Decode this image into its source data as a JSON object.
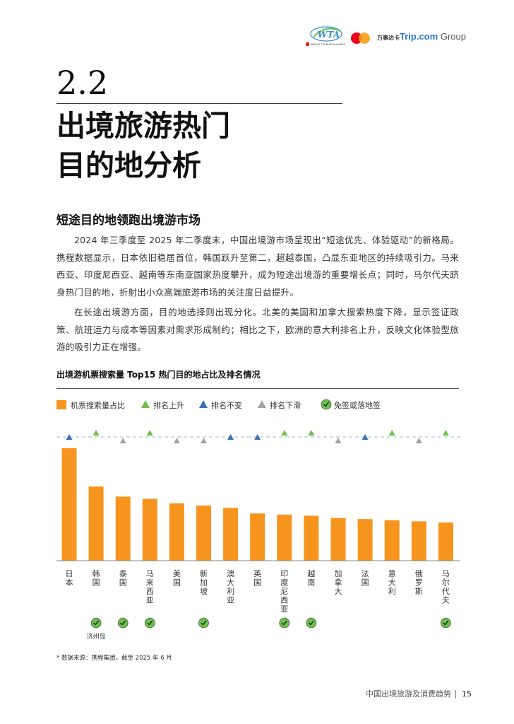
{
  "header": {
    "wta_logo_text": "WTA",
    "wta_org": "WORLD TOURISM ALLIANCE",
    "mastercard_text": "万事达卡",
    "trip_brand": "Trip.com",
    "trip_group": "Group"
  },
  "section": {
    "number": "2.2",
    "title_line1": "出境旅游热门",
    "title_line2": "目的地分析"
  },
  "subheading": "短途目的地领跑出境游市场",
  "paragraphs": [
    "2024 年三季度至 2025 年二季度末，中国出境游市场呈现出“短途优先、体验驱动”的新格局。携程数据显示，日本依旧稳居首位，韩国跃升至第二，超越泰国，凸显东亚地区的持续吸引力。马来西亚、印度尼西亚、越南等东南亚国家热度攀升，成为短途出境游的重要增长点；同时，马尔代夫跻身热门目的地，折射出小众高端旅游市场的关注度日益提升。",
    "在长途出境游方面，目的地选择则出现分化。北美的美国和加拿大搜索热度下降，显示签证政策、航班运力与成本等因素对需求形成制约；相比之下，欧洲的意大利排名上升，反映文化体验型旅游的吸引力正在增强。"
  ],
  "chart_title": "出境游机票搜索量 Top15 热门目的地占比及排名情况",
  "legend": {
    "share": "机票搜索量占比",
    "up": "排名上升",
    "same": "排名不变",
    "down": "排名下滑",
    "visa": "免签或落地签"
  },
  "colors": {
    "bar": "#f7941d",
    "up": "#6cc04a",
    "same": "#3b6fb6",
    "down": "#a3a3a3",
    "visa": "#6cc04a",
    "dashed_line": "#9fb8cf"
  },
  "chart_data": {
    "type": "bar",
    "title": "出境游机票搜索量 Top15 热门目的地占比及排名情况",
    "categories": [
      "日本",
      "韩国",
      "泰国",
      "马来西亚",
      "美国",
      "新加坡",
      "澳大利亚",
      "英国",
      "印度尼西亚",
      "越南",
      "加拿大",
      "法国",
      "意大利",
      "俄罗斯",
      "马尔代夫"
    ],
    "values": [
      100,
      66,
      57,
      55,
      51,
      49,
      47,
      42,
      41,
      40,
      38,
      37,
      36,
      35,
      34
    ],
    "rank_change": [
      "same",
      "up",
      "down",
      "up",
      "down",
      "down",
      "same",
      "same",
      "up",
      "up",
      "down",
      "same",
      "up",
      "down",
      "up"
    ],
    "visa_free": [
      false,
      true,
      true,
      true,
      false,
      true,
      false,
      false,
      true,
      true,
      false,
      false,
      false,
      false,
      true
    ],
    "visa_notes": [
      "",
      "济州岛",
      "",
      "",
      "",
      "",
      "",
      "",
      "",
      "",
      "",
      "",
      "",
      "",
      ""
    ],
    "ylim": [
      0,
      100
    ],
    "y_axis_shown": false,
    "legend_position": "top-left"
  },
  "source_note": "* 数据来源：携程集团，截至 2025 年 6 月",
  "footer": {
    "report_title": "中国出境旅游及消费趋势",
    "page": "15"
  }
}
